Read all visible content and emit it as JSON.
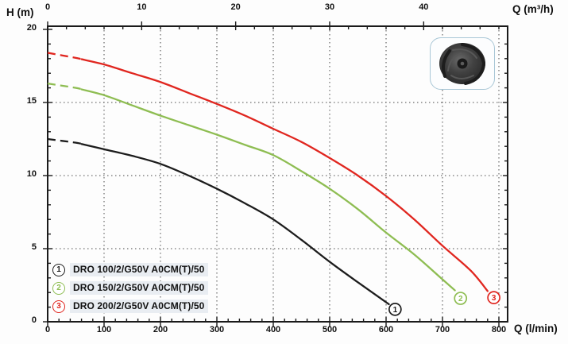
{
  "labels": {
    "y_axis_title": "H (m)",
    "x_axis_top_title": "Q (m³/h)",
    "x_axis_bottom_title": "Q (l/min)"
  },
  "chart_data": {
    "type": "line",
    "ylabel": "H (m)",
    "xlabel_bottom": "Q (l/min)",
    "xlabel_top": "Q (m³/h)",
    "ylim": [
      0,
      20.2
    ],
    "xlim_lmin": [
      0,
      815
    ],
    "axes": {
      "y_tick_labels": [
        0,
        5,
        10,
        15,
        20
      ],
      "y_minor_step": 1,
      "x_bottom_tick_labels": [
        0,
        100,
        200,
        300,
        400,
        500,
        600,
        700,
        800
      ],
      "x_bottom_minor_step": 20,
      "x_top_tick_labels": [
        0,
        10,
        20,
        30,
        40
      ],
      "x_top_minor_step": 2
    },
    "grid": {
      "style": "dotted",
      "vertical_lines_lmin": [
        100,
        200,
        300,
        400,
        500,
        600,
        700,
        800
      ],
      "horizontal_lines_m": [
        5,
        10,
        15
      ],
      "color": "#4a4a4a"
    },
    "dashed_until_lmin": 60,
    "series": [
      {
        "num": "1",
        "name": "DRO 100/2/G50V A0CM(T)/50",
        "color": "#1c1c1c",
        "points": [
          [
            0,
            12.5
          ],
          [
            50,
            12.25
          ],
          [
            100,
            11.8
          ],
          [
            150,
            11.35
          ],
          [
            200,
            10.8
          ],
          [
            250,
            10.0
          ],
          [
            300,
            9.1
          ],
          [
            350,
            8.1
          ],
          [
            400,
            7.0
          ],
          [
            450,
            5.6
          ],
          [
            500,
            4.1
          ],
          [
            550,
            2.7
          ],
          [
            605,
            1.2
          ]
        ],
        "end_marker_pos": [
          616,
          0.85
        ]
      },
      {
        "num": "2",
        "name": "DRO 150/2/G50V A0CM(T)/50",
        "color": "#8ebd52",
        "points": [
          [
            0,
            16.3
          ],
          [
            50,
            16.0
          ],
          [
            100,
            15.5
          ],
          [
            150,
            14.8
          ],
          [
            200,
            14.1
          ],
          [
            250,
            13.45
          ],
          [
            300,
            12.8
          ],
          [
            350,
            12.1
          ],
          [
            400,
            11.4
          ],
          [
            450,
            10.3
          ],
          [
            500,
            9.1
          ],
          [
            550,
            7.7
          ],
          [
            600,
            6.1
          ],
          [
            650,
            4.6
          ],
          [
            700,
            2.9
          ],
          [
            722,
            2.15
          ]
        ],
        "end_marker_pos": [
          732,
          1.6
        ]
      },
      {
        "num": "3",
        "name": "DRO 200/2/G50V A0CM(T)/50",
        "color": "#e0261f",
        "points": [
          [
            0,
            18.4
          ],
          [
            50,
            18.05
          ],
          [
            100,
            17.6
          ],
          [
            150,
            17.0
          ],
          [
            200,
            16.4
          ],
          [
            250,
            15.65
          ],
          [
            300,
            14.9
          ],
          [
            350,
            14.1
          ],
          [
            400,
            13.2
          ],
          [
            450,
            12.3
          ],
          [
            500,
            11.2
          ],
          [
            550,
            10.0
          ],
          [
            600,
            8.6
          ],
          [
            650,
            7.0
          ],
          [
            700,
            5.2
          ],
          [
            750,
            3.5
          ],
          [
            780,
            2.1
          ]
        ],
        "end_marker_pos": [
          791,
          1.65
        ]
      }
    ],
    "legend_position": "bottom-left"
  },
  "impeller": {
    "name": "impeller-photo"
  },
  "style": {
    "axis_color": "#1a1a1a",
    "legend_bg": "#e9edf2",
    "impeller_border": "#a9c7d6"
  }
}
